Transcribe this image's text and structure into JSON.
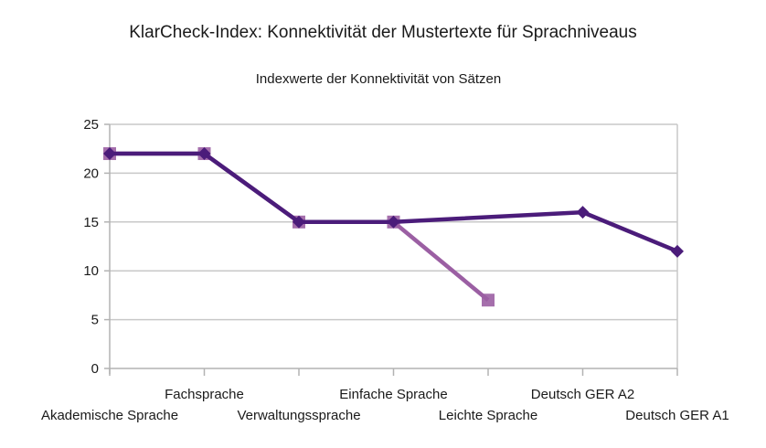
{
  "chart_data": {
    "type": "line",
    "title": "KlarCheck-Index: Konnektivität der Mustertexte für Sprachniveaus",
    "subtitle": "Indexwerte der Konnektivität von Sätzen",
    "xlabel": "",
    "ylabel": "",
    "categories": [
      "Akademische Sprache",
      "Fachsprache",
      "Verwaltungssprache",
      "Einfache Sprache",
      "Leichte Sprache",
      "Deutsch GER A2",
      "Deutsch GER A1"
    ],
    "ylim": [
      0,
      25
    ],
    "yticks": [
      0,
      5,
      10,
      15,
      20,
      25
    ],
    "grid": true,
    "legend": "none",
    "series": [
      {
        "name": "Leichte Sprache",
        "color": "#9b5fa3",
        "marker": "square",
        "values": [
          22,
          22,
          15,
          15,
          7,
          null,
          null
        ]
      },
      {
        "name": "Deutsch GER",
        "color": "#4b1c7a",
        "marker": "diamond",
        "values": [
          22,
          22,
          15,
          15,
          null,
          16,
          12
        ]
      }
    ]
  }
}
